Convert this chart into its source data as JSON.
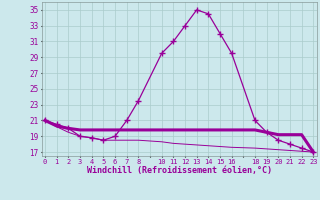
{
  "xlabel": "Windchill (Refroidissement éolien,°C)",
  "background_color": "#cce8ec",
  "grid_color": "#aacccc",
  "line_color": "#990099",
  "x_all": [
    0,
    1,
    2,
    3,
    4,
    5,
    6,
    7,
    8,
    9,
    10,
    11,
    12,
    13,
    14,
    15,
    16,
    17,
    18,
    19,
    20,
    21,
    22,
    23
  ],
  "x_data": [
    0,
    1,
    2,
    3,
    4,
    5,
    6,
    7,
    8,
    10,
    11,
    12,
    13,
    14,
    15,
    16,
    18,
    19,
    20,
    21,
    22,
    23
  ],
  "temp_line": [
    21,
    20.5,
    20.0,
    19.0,
    18.8,
    18.5,
    19.0,
    21.0,
    23.5,
    29.5,
    31.0,
    33.0,
    35.0,
    34.5,
    32.0,
    29.5,
    21.0,
    19.5,
    18.5,
    18.0,
    17.5,
    17.0
  ],
  "windchill_line": [
    21,
    20.3,
    20.0,
    19.8,
    19.8,
    19.8,
    19.8,
    19.8,
    19.8,
    19.8,
    19.8,
    19.8,
    19.8,
    19.8,
    19.8,
    19.8,
    19.8,
    19.5,
    19.2,
    19.2,
    19.2,
    17.0
  ],
  "apparent_line": [
    21,
    20.2,
    19.5,
    19.0,
    18.8,
    18.5,
    18.5,
    18.5,
    18.5,
    18.3,
    18.1,
    18.0,
    17.9,
    17.8,
    17.7,
    17.6,
    17.5,
    17.4,
    17.3,
    17.2,
    17.1,
    17.0
  ],
  "ylim": [
    16.5,
    36.0
  ],
  "yticks": [
    17,
    19,
    21,
    23,
    25,
    27,
    29,
    31,
    33,
    35
  ],
  "xtick_labels": [
    "0",
    "1",
    "2",
    "3",
    "4",
    "5",
    "6",
    "7",
    "8",
    "",
    "10",
    "11",
    "12",
    "13",
    "14",
    "15",
    "16",
    "",
    "18",
    "19",
    "20",
    "21",
    "22",
    "23"
  ]
}
